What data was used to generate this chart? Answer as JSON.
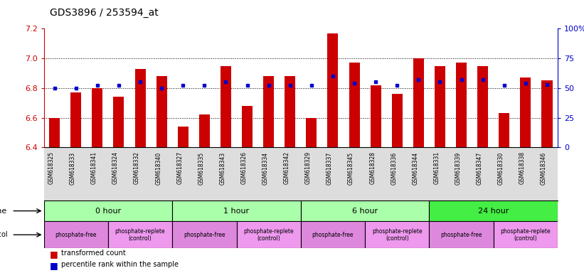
{
  "title": "GDS3896 / 253594_at",
  "samples": [
    "GSM618325",
    "GSM618333",
    "GSM618341",
    "GSM618324",
    "GSM618332",
    "GSM618340",
    "GSM618327",
    "GSM618335",
    "GSM618343",
    "GSM618326",
    "GSM618334",
    "GSM618342",
    "GSM618329",
    "GSM618337",
    "GSM618345",
    "GSM618328",
    "GSM618336",
    "GSM618344",
    "GSM618331",
    "GSM618339",
    "GSM618347",
    "GSM618330",
    "GSM618338",
    "GSM618346"
  ],
  "bar_values": [
    6.6,
    6.77,
    6.8,
    6.74,
    6.93,
    6.88,
    6.54,
    6.62,
    6.95,
    6.68,
    6.88,
    6.88,
    6.6,
    7.17,
    6.97,
    6.82,
    6.76,
    7.0,
    6.95,
    6.97,
    6.95,
    6.63,
    6.87,
    6.85
  ],
  "percentile_values": [
    50,
    50,
    52,
    52,
    55,
    50,
    52,
    52,
    55,
    52,
    52,
    52,
    52,
    60,
    54,
    55,
    52,
    57,
    55,
    57,
    57,
    52,
    54,
    53
  ],
  "bar_color": "#cc0000",
  "percentile_color": "#0000cc",
  "ymin": 6.4,
  "ymax": 7.2,
  "yticks_left": [
    6.4,
    6.6,
    6.8,
    7.0,
    7.2
  ],
  "yticks_right": [
    0,
    25,
    50,
    75,
    100
  ],
  "grid_vals": [
    6.6,
    6.8,
    7.0
  ],
  "bar_width": 0.5,
  "left_axis_color": "#cc0000",
  "right_axis_color": "#0000cc",
  "time_groups": [
    {
      "label": "0 hour",
      "start": 0,
      "end": 6,
      "color": "#aaffaa"
    },
    {
      "label": "1 hour",
      "start": 6,
      "end": 12,
      "color": "#aaffaa"
    },
    {
      "label": "6 hour",
      "start": 12,
      "end": 18,
      "color": "#aaffaa"
    },
    {
      "label": "24 hour",
      "start": 18,
      "end": 24,
      "color": "#44ee44"
    }
  ],
  "proto_groups": [
    {
      "label": "phosphate-free",
      "start": 0,
      "end": 3,
      "color": "#dd88dd"
    },
    {
      "label": "phosphate-replete\n(control)",
      "start": 3,
      "end": 6,
      "color": "#ee99ee"
    },
    {
      "label": "phosphate-free",
      "start": 6,
      "end": 9,
      "color": "#dd88dd"
    },
    {
      "label": "phosphate-replete\n(control)",
      "start": 9,
      "end": 12,
      "color": "#ee99ee"
    },
    {
      "label": "phosphate-free",
      "start": 12,
      "end": 15,
      "color": "#dd88dd"
    },
    {
      "label": "phosphate-replete\n(control)",
      "start": 15,
      "end": 18,
      "color": "#ee99ee"
    },
    {
      "label": "phosphate-free",
      "start": 18,
      "end": 21,
      "color": "#dd88dd"
    },
    {
      "label": "phosphate-replete\n(control)",
      "start": 21,
      "end": 24,
      "color": "#ee99ee"
    }
  ],
  "label_row_color": "#dddddd",
  "figsize": [
    8.21,
    3.84
  ],
  "dpi": 100
}
